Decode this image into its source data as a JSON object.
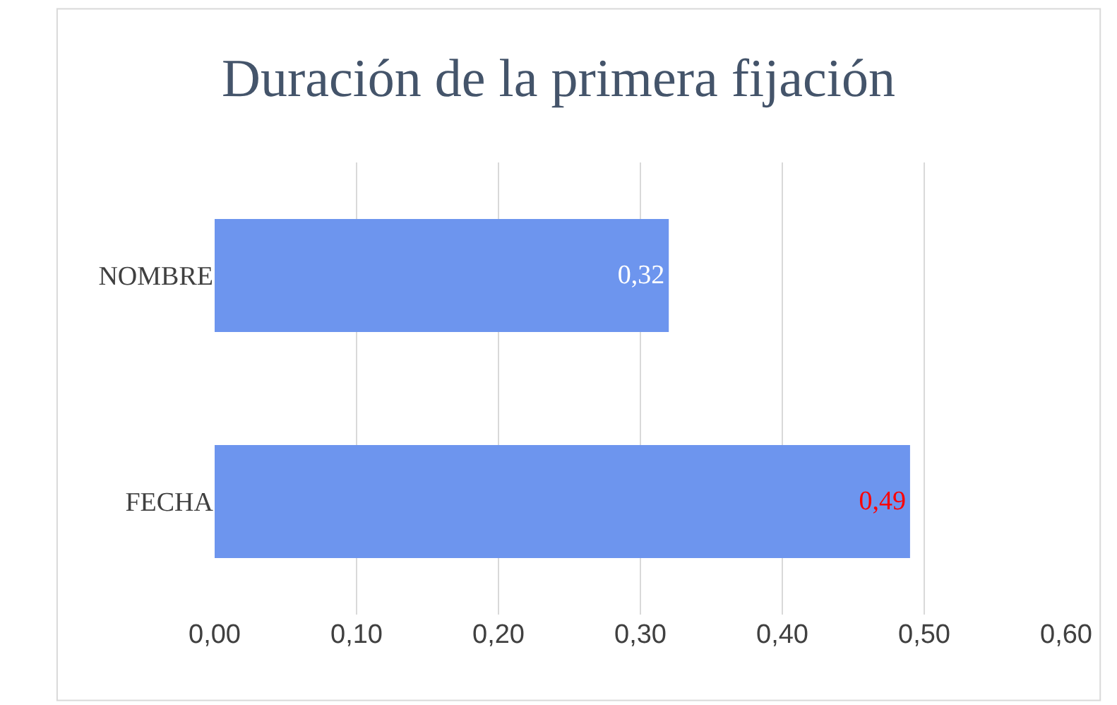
{
  "chart_data": {
    "type": "bar",
    "orientation": "horizontal",
    "title": "Duración de la primera fijación",
    "categories": [
      "NOMBRE",
      "FECHA"
    ],
    "values": [
      0.32,
      0.49
    ],
    "value_labels": [
      "0,32",
      "0,49"
    ],
    "color": "#6d95ee",
    "xlim": [
      0,
      0.6
    ],
    "xticks": [
      {
        "value": 0,
        "label": "0,00"
      },
      {
        "value": 0.1,
        "label": "0,10"
      },
      {
        "value": 0.2,
        "label": "0,20"
      },
      {
        "value": 0.3,
        "label": "0,30"
      },
      {
        "value": 0.4,
        "label": "0,40"
      },
      {
        "value": 0.5,
        "label": "0,50"
      },
      {
        "value": 0.6,
        "label": "0,60"
      }
    ],
    "grid": "x",
    "legend": false
  }
}
